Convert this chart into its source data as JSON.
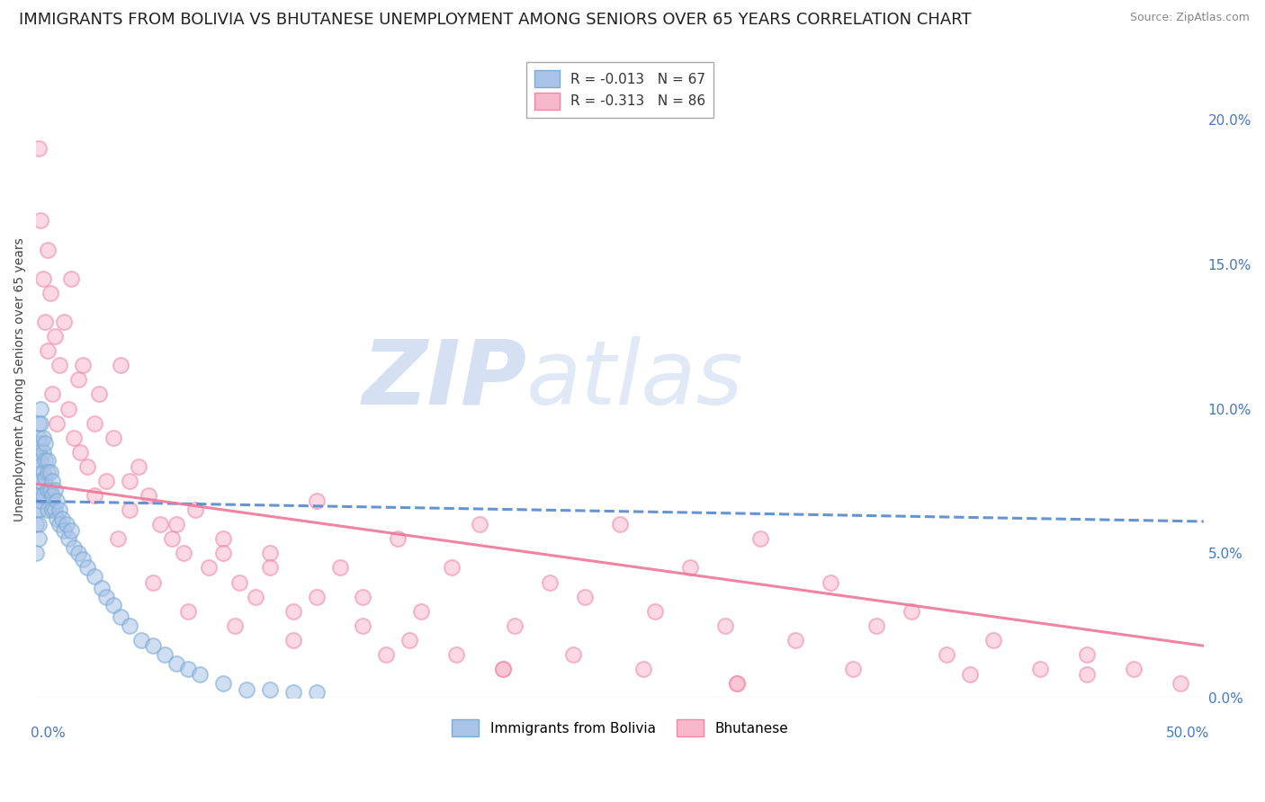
{
  "title": "IMMIGRANTS FROM BOLIVIA VS BHUTANESE UNEMPLOYMENT AMONG SENIORS OVER 65 YEARS CORRELATION CHART",
  "source": "Source: ZipAtlas.com",
  "ylabel": "Unemployment Among Seniors over 65 years",
  "series": [
    {
      "name": "Immigrants from Bolivia",
      "R": -0.013,
      "N": 67,
      "face_color": "#aac4e8",
      "edge_color": "#7aaad4",
      "trend_color": "#5588cc",
      "trend_style": "--",
      "x": [
        0.0,
        0.0,
        0.0,
        0.0,
        0.001,
        0.001,
        0.001,
        0.001,
        0.001,
        0.001,
        0.001,
        0.001,
        0.001,
        0.002,
        0.002,
        0.002,
        0.002,
        0.002,
        0.002,
        0.003,
        0.003,
        0.003,
        0.003,
        0.004,
        0.004,
        0.004,
        0.005,
        0.005,
        0.005,
        0.005,
        0.006,
        0.006,
        0.007,
        0.007,
        0.007,
        0.008,
        0.008,
        0.009,
        0.009,
        0.01,
        0.01,
        0.011,
        0.012,
        0.013,
        0.014,
        0.015,
        0.016,
        0.018,
        0.02,
        0.022,
        0.025,
        0.028,
        0.03,
        0.033,
        0.036,
        0.04,
        0.045,
        0.05,
        0.055,
        0.06,
        0.065,
        0.07,
        0.08,
        0.09,
        0.1,
        0.11,
        0.12
      ],
      "y": [
        0.05,
        0.06,
        0.065,
        0.07,
        0.095,
        0.09,
        0.085,
        0.08,
        0.075,
        0.07,
        0.065,
        0.06,
        0.055,
        0.1,
        0.095,
        0.088,
        0.082,
        0.075,
        0.068,
        0.09,
        0.085,
        0.078,
        0.07,
        0.088,
        0.082,
        0.076,
        0.082,
        0.078,
        0.072,
        0.065,
        0.078,
        0.072,
        0.075,
        0.07,
        0.065,
        0.072,
        0.065,
        0.068,
        0.062,
        0.065,
        0.06,
        0.062,
        0.058,
        0.06,
        0.055,
        0.058,
        0.052,
        0.05,
        0.048,
        0.045,
        0.042,
        0.038,
        0.035,
        0.032,
        0.028,
        0.025,
        0.02,
        0.018,
        0.015,
        0.012,
        0.01,
        0.008,
        0.005,
        0.003,
        0.003,
        0.002,
        0.002
      ],
      "trend_x": [
        0.0,
        0.5
      ],
      "trend_y": [
        0.068,
        0.061
      ]
    },
    {
      "name": "Bhutanese",
      "R": -0.313,
      "N": 86,
      "face_color": "#f8b8cc",
      "edge_color": "#ee88aa",
      "trend_color": "#ee7799",
      "trend_style": "-",
      "x": [
        0.001,
        0.002,
        0.003,
        0.004,
        0.005,
        0.005,
        0.006,
        0.007,
        0.008,
        0.009,
        0.01,
        0.012,
        0.014,
        0.015,
        0.016,
        0.018,
        0.019,
        0.02,
        0.022,
        0.025,
        0.027,
        0.03,
        0.033,
        0.036,
        0.04,
        0.044,
        0.048,
        0.053,
        0.058,
        0.063,
        0.068,
        0.074,
        0.08,
        0.087,
        0.094,
        0.1,
        0.11,
        0.12,
        0.13,
        0.14,
        0.155,
        0.165,
        0.178,
        0.19,
        0.205,
        0.22,
        0.235,
        0.25,
        0.265,
        0.28,
        0.295,
        0.31,
        0.325,
        0.34,
        0.36,
        0.375,
        0.39,
        0.41,
        0.43,
        0.45,
        0.47,
        0.49,
        0.04,
        0.06,
        0.08,
        0.1,
        0.12,
        0.14,
        0.16,
        0.18,
        0.2,
        0.23,
        0.26,
        0.3,
        0.35,
        0.4,
        0.45,
        0.025,
        0.035,
        0.05,
        0.065,
        0.085,
        0.11,
        0.15,
        0.2,
        0.3
      ],
      "y": [
        0.19,
        0.165,
        0.145,
        0.13,
        0.12,
        0.155,
        0.14,
        0.105,
        0.125,
        0.095,
        0.115,
        0.13,
        0.1,
        0.145,
        0.09,
        0.11,
        0.085,
        0.115,
        0.08,
        0.095,
        0.105,
        0.075,
        0.09,
        0.115,
        0.065,
        0.08,
        0.07,
        0.06,
        0.055,
        0.05,
        0.065,
        0.045,
        0.055,
        0.04,
        0.035,
        0.05,
        0.03,
        0.068,
        0.045,
        0.035,
        0.055,
        0.03,
        0.045,
        0.06,
        0.025,
        0.04,
        0.035,
        0.06,
        0.03,
        0.045,
        0.025,
        0.055,
        0.02,
        0.04,
        0.025,
        0.03,
        0.015,
        0.02,
        0.01,
        0.015,
        0.01,
        0.005,
        0.075,
        0.06,
        0.05,
        0.045,
        0.035,
        0.025,
        0.02,
        0.015,
        0.01,
        0.015,
        0.01,
        0.005,
        0.01,
        0.008,
        0.008,
        0.07,
        0.055,
        0.04,
        0.03,
        0.025,
        0.02,
        0.015,
        0.01,
        0.005
      ],
      "trend_x": [
        0.0,
        0.5
      ],
      "trend_y": [
        0.074,
        0.018
      ]
    }
  ],
  "xlim": [
    0.0,
    0.5
  ],
  "ylim": [
    0.0,
    0.22
  ],
  "yticks": [
    0.0,
    0.05,
    0.1,
    0.15,
    0.2
  ],
  "ytick_labels_right": [
    "0.0%",
    "5.0%",
    "10.0%",
    "15.0%",
    "20.0%"
  ],
  "watermark_zip": "ZIP",
  "watermark_atlas": "atlas",
  "background_color": "#ffffff",
  "grid_color": "#cccccc",
  "title_fontsize": 13,
  "axis_label_fontsize": 10,
  "tick_fontsize": 11,
  "legend_fontsize": 11,
  "marker_size": 150,
  "marker_alpha": 0.55,
  "marker_linewidth": 1.5
}
